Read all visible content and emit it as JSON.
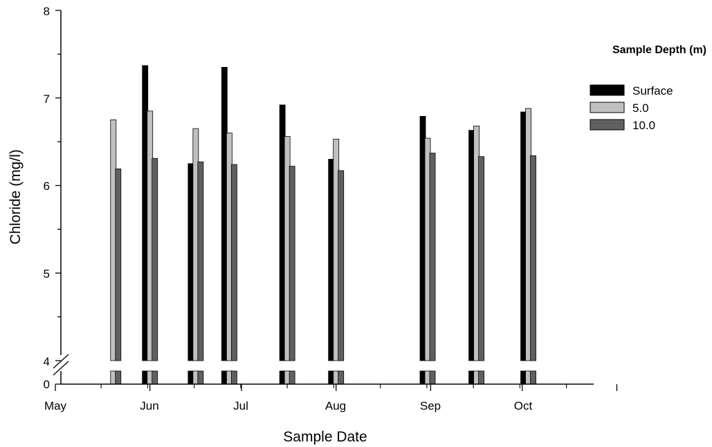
{
  "chart_data": {
    "type": "bar",
    "xlabel": "Sample Date",
    "ylabel": "Chloride (mg/l)",
    "x_tick_labels": [
      "May",
      "Jun",
      "Jul",
      "Aug",
      "Sep",
      "Oct"
    ],
    "y_tick_labels": [
      "0",
      "4",
      "5",
      "6",
      "7",
      "8"
    ],
    "ylim": [
      0,
      8
    ],
    "axis_break": [
      0,
      4
    ],
    "grid": false,
    "legend_title": "Sample Depth (m)",
    "legend_position": "top-right",
    "sample_dates": [
      "May 20",
      "Jun 1",
      "Jun 16",
      "Jun 27",
      "Jul 16",
      "Aug 1",
      "Aug 31",
      "Sep 16",
      "Oct 3"
    ],
    "series": [
      {
        "name": "Surface",
        "color": "#000000",
        "values": [
          null,
          7.37,
          6.25,
          7.35,
          6.92,
          6.3,
          6.79,
          6.63,
          6.84
        ]
      },
      {
        "name": "5.0",
        "color": "#c0c0c0",
        "values": [
          6.75,
          6.85,
          6.65,
          6.6,
          6.56,
          6.53,
          6.54,
          6.68,
          6.88
        ]
      },
      {
        "name": "10.0",
        "color": "#606060",
        "values": [
          6.19,
          6.31,
          6.27,
          6.24,
          6.22,
          6.17,
          6.37,
          6.33,
          6.34
        ]
      }
    ]
  }
}
